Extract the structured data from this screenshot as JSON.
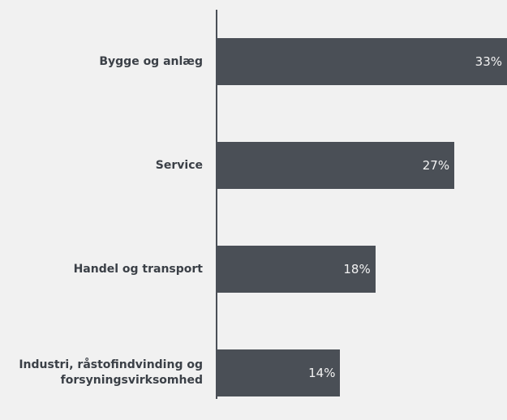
{
  "chart_data": {
    "type": "bar",
    "orientation": "horizontal",
    "categories": [
      "Bygge og anlæg",
      "Service",
      "Handel og transport",
      "Industri, råstofindvinding og forsyningsvirksomhed"
    ],
    "values": [
      33,
      27,
      18,
      14
    ],
    "value_labels": [
      "33%",
      "27%",
      "18%",
      "14%"
    ],
    "color": "#4a4f56",
    "xlim": [
      0,
      33
    ]
  }
}
